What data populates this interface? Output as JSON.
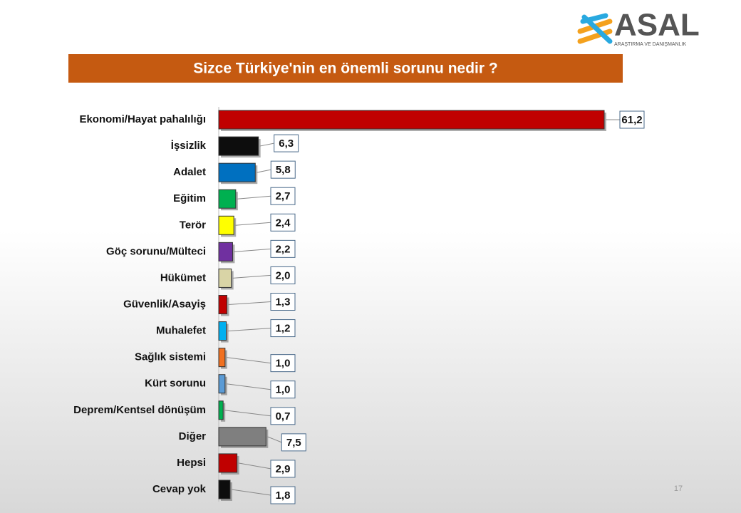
{
  "logo": {
    "name": "ASAL",
    "tagline": "ARAŞTIRMA VE DANIŞMANLIK"
  },
  "page_number": "17",
  "chart_data": {
    "type": "bar",
    "orientation": "horizontal",
    "title": "Sizce Türkiye'nin en önemli sorunu nedir ?",
    "categories": [
      "Ekonomi/Hayat pahalılığı",
      "İşsizlik",
      "Adalet",
      "Eğitim",
      "Terör",
      "Göç sorunu/Mülteci",
      "Hükümet",
      "Güvenlik/Asayiş",
      "Muhalefet",
      "Sağlık sistemi",
      "Kürt sorunu",
      "Deprem/Kentsel dönüşüm",
      "Diğer",
      "Hepsi",
      "Cevap yok"
    ],
    "values": [
      61.2,
      6.3,
      5.8,
      2.7,
      2.4,
      2.2,
      2.0,
      1.3,
      1.2,
      1.0,
      1.0,
      0.7,
      7.5,
      2.9,
      1.8
    ],
    "value_labels": [
      "61,2",
      "6,3",
      "5,8",
      "2,7",
      "2,4",
      "2,2",
      "2,0",
      "1,3",
      "1,2",
      "1,0",
      "1,0",
      "0,7",
      "7,5",
      "2,9",
      "1,8"
    ],
    "colors": [
      "#c00000",
      "#0d0d0d",
      "#0070c0",
      "#00b050",
      "#ffff00",
      "#7030a0",
      "#d9d4a6",
      "#c00000",
      "#00b0f0",
      "#f07020",
      "#5b9bd5",
      "#00b050",
      "#7f7f7f",
      "#c00000",
      "#0d0d0d"
    ]
  }
}
